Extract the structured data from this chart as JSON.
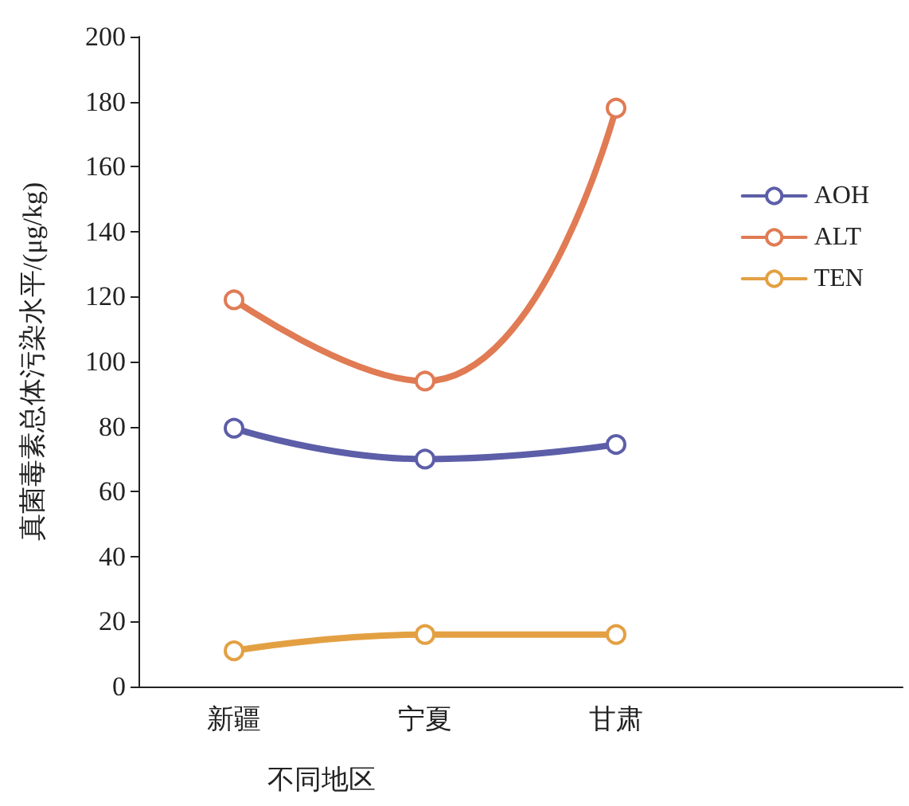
{
  "chart_data": {
    "type": "line",
    "xlabel": "不同地区",
    "ylabel": "真菌毒素总体污染水平/(μg/kg)",
    "categories": [
      "新疆",
      "宁夏",
      "甘肃",
      null
    ],
    "series": [
      {
        "name": "AOH",
        "color": "#5c5ea8",
        "values": [
          79.5,
          70,
          74.5,
          null
        ]
      },
      {
        "name": "ALT",
        "color": "#e07b54",
        "values": [
          119,
          94,
          178,
          null
        ]
      },
      {
        "name": "TEN",
        "color": "#e3a042",
        "values": [
          11,
          16,
          16,
          null
        ]
      }
    ],
    "ylim": [
      0,
      200
    ],
    "yticks": [
      0,
      20,
      40,
      60,
      80,
      100,
      120,
      140,
      160,
      180,
      200
    ],
    "grid": false,
    "legend": "right",
    "marker": "circle",
    "line_style": "solid"
  }
}
